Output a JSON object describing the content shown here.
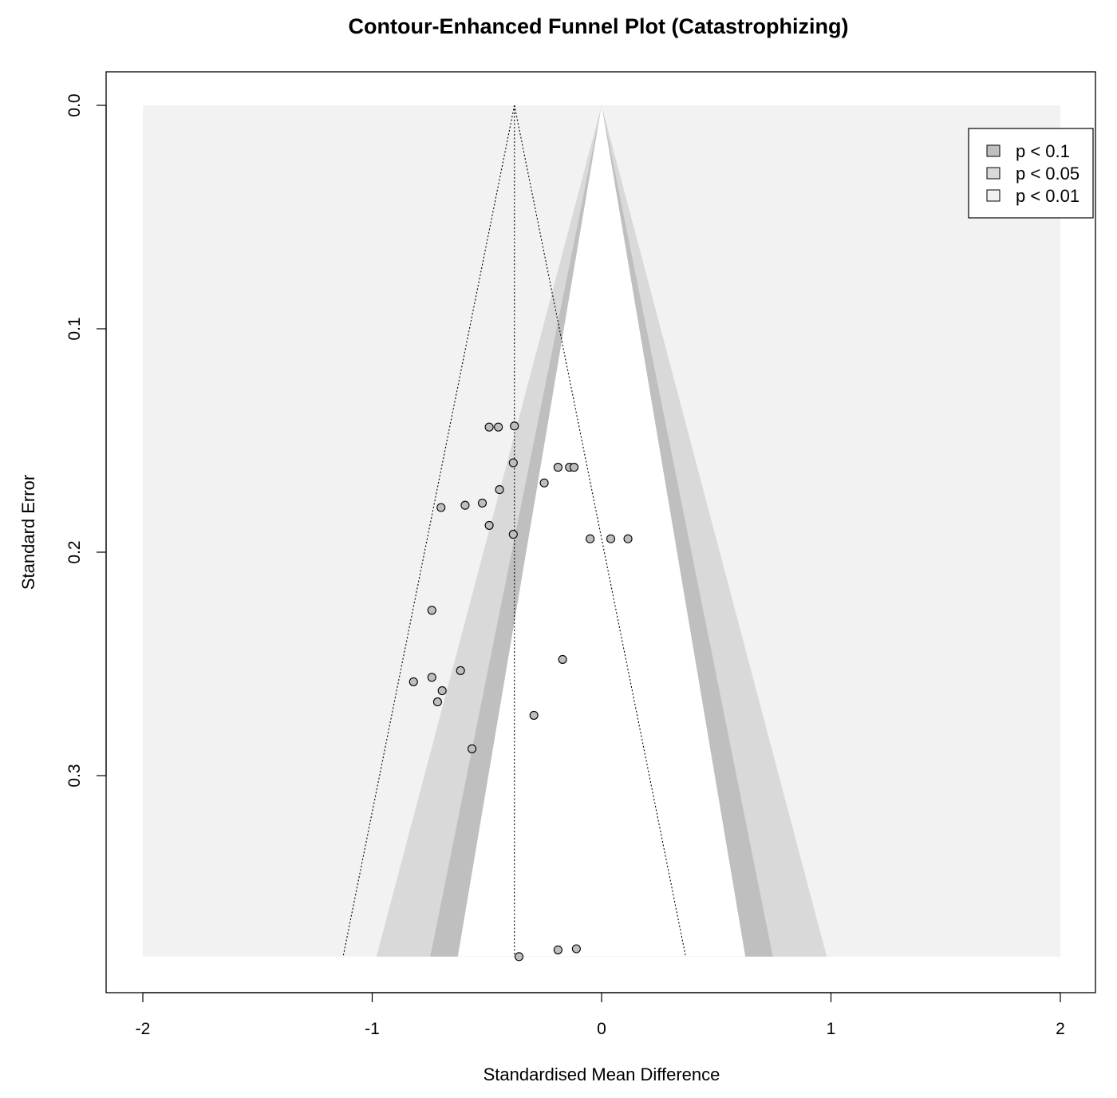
{
  "chart_data": {
    "type": "scatter",
    "title": "Contour-Enhanced Funnel Plot (Catastrophizing)",
    "xlabel": "Standardised Mean Difference",
    "ylabel": "Standard Error",
    "xlim": [
      -2,
      2
    ],
    "ylim": [
      0,
      0.38
    ],
    "y_axis_reversed": true,
    "x_ticks": [
      "-2",
      "-1",
      "0",
      "1",
      "2"
    ],
    "y_ticks": [
      "0.0",
      "0.1",
      "0.2",
      "0.3"
    ],
    "pooled_estimate": -0.38,
    "se_max": 0.381,
    "contours": [
      {
        "label": "p < 0.1",
        "z": 1.645,
        "color": "#bfbfbf"
      },
      {
        "label": "p < 0.05",
        "z": 1.96,
        "color": "#d9d9d9"
      },
      {
        "label": "p < 0.01",
        "z": 2.576,
        "color": "#f2f2f2"
      }
    ],
    "colors": {
      "inner_region": "#ffffff",
      "point_fill": "#bebebe",
      "point_stroke": "#000000"
    },
    "legend_position": "top-right",
    "points": [
      {
        "x": -0.49,
        "y": 0.144
      },
      {
        "x": -0.45,
        "y": 0.144
      },
      {
        "x": -0.38,
        "y": 0.1435
      },
      {
        "x": -0.385,
        "y": 0.16
      },
      {
        "x": -0.19,
        "y": 0.162
      },
      {
        "x": -0.14,
        "y": 0.162
      },
      {
        "x": -0.12,
        "y": 0.162
      },
      {
        "x": -0.445,
        "y": 0.172
      },
      {
        "x": -0.25,
        "y": 0.169
      },
      {
        "x": -0.52,
        "y": 0.178
      },
      {
        "x": -0.595,
        "y": 0.179
      },
      {
        "x": -0.7,
        "y": 0.18
      },
      {
        "x": -0.49,
        "y": 0.188
      },
      {
        "x": -0.385,
        "y": 0.192
      },
      {
        "x": -0.05,
        "y": 0.194
      },
      {
        "x": 0.04,
        "y": 0.194
      },
      {
        "x": 0.115,
        "y": 0.194
      },
      {
        "x": -0.74,
        "y": 0.226
      },
      {
        "x": -0.17,
        "y": 0.248
      },
      {
        "x": -0.615,
        "y": 0.253
      },
      {
        "x": -0.74,
        "y": 0.256
      },
      {
        "x": -0.82,
        "y": 0.258
      },
      {
        "x": -0.695,
        "y": 0.262
      },
      {
        "x": -0.715,
        "y": 0.267
      },
      {
        "x": -0.295,
        "y": 0.273
      },
      {
        "x": -0.565,
        "y": 0.288
      },
      {
        "x": -0.19,
        "y": 0.378
      },
      {
        "x": -0.11,
        "y": 0.3775
      },
      {
        "x": -0.36,
        "y": 0.381
      }
    ]
  }
}
